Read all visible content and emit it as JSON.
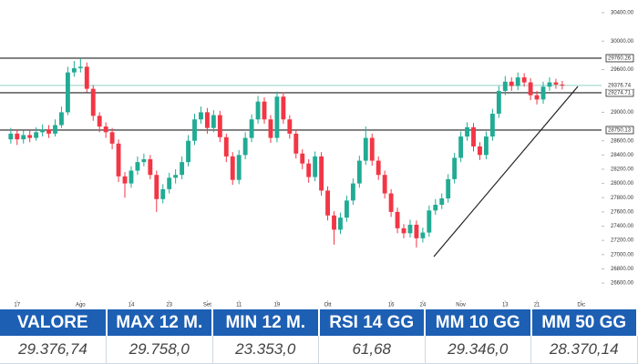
{
  "chart_data": {
    "type": "candlestick",
    "x": [
      0,
      1,
      2,
      3,
      4,
      5,
      6,
      7,
      8,
      9,
      10,
      11,
      12,
      13,
      14,
      15,
      16,
      17,
      18,
      19,
      20,
      21,
      22,
      23,
      24,
      25,
      26,
      27,
      28,
      29,
      30,
      31,
      32,
      33,
      34,
      35,
      36,
      37,
      38,
      39,
      40,
      41,
      42,
      43,
      44,
      45,
      46,
      47,
      48,
      49,
      50,
      51,
      52,
      53,
      54,
      55,
      56,
      57,
      58,
      59,
      60,
      61,
      62,
      63,
      64,
      65,
      66,
      67,
      68,
      69,
      70,
      71,
      72,
      73,
      74,
      75,
      76,
      77,
      78,
      79,
      80,
      81,
      82,
      83,
      84,
      85,
      86,
      87
    ],
    "open": [
      28620,
      28700,
      28620,
      28680,
      28640,
      28720,
      28760,
      28700,
      28820,
      29000,
      29560,
      29620,
      29640,
      29330,
      28950,
      28800,
      28720,
      28560,
      28100,
      28000,
      28180,
      28300,
      28340,
      28120,
      27780,
      27920,
      28080,
      28120,
      28300,
      28600,
      28900,
      29000,
      28780,
      28960,
      28650,
      28380,
      28050,
      28400,
      28640,
      28900,
      29150,
      28900,
      28640,
      29220,
      28900,
      28700,
      28420,
      28280,
      28090,
      28380,
      27900,
      27550,
      27350,
      27520,
      27760,
      28000,
      28320,
      28640,
      28320,
      28120,
      27860,
      27600,
      27370,
      27300,
      27420,
      27230,
      27310,
      27620,
      27700,
      27790,
      28060,
      28360,
      28660,
      28790,
      28520,
      28400,
      28660,
      28980,
      29300,
      29430,
      29370,
      29490,
      29420,
      29240,
      29180,
      29360,
      29420,
      29390
    ],
    "high": [
      28780,
      28760,
      28740,
      28750,
      28790,
      28830,
      28820,
      28900,
      29080,
      29640,
      29720,
      29760,
      29700,
      29380,
      29000,
      28860,
      28780,
      28620,
      28160,
      28240,
      28380,
      28420,
      28400,
      28180,
      27990,
      28150,
      28200,
      28380,
      28680,
      28980,
      29080,
      29060,
      29030,
      29020,
      28700,
      28440,
      28470,
      28720,
      28970,
      29230,
      29210,
      28960,
      29290,
      29280,
      28960,
      28760,
      28480,
      28340,
      28450,
      28440,
      27960,
      27610,
      27590,
      27830,
      28070,
      28390,
      28800,
      28700,
      28380,
      28180,
      27920,
      27660,
      27430,
      27490,
      27480,
      27380,
      27690,
      27780,
      27860,
      28130,
      28430,
      28730,
      28860,
      28850,
      28580,
      28730,
      29050,
      29370,
      29510,
      29490,
      29560,
      29550,
      29480,
      29300,
      29430,
      29490,
      29470,
      29440
    ],
    "low": [
      28560,
      28540,
      28560,
      28580,
      28600,
      28660,
      28640,
      28660,
      28780,
      28960,
      29500,
      29560,
      29280,
      28880,
      28720,
      28640,
      28480,
      28020,
      27800,
      27940,
      28120,
      28240,
      28060,
      27600,
      27720,
      27860,
      28000,
      28060,
      28240,
      28540,
      28840,
      28700,
      28720,
      28580,
      28300,
      27980,
      27990,
      28340,
      28580,
      28840,
      28840,
      28570,
      28580,
      28840,
      28630,
      28350,
      28200,
      28010,
      28030,
      27830,
      27480,
      27140,
      27290,
      27460,
      27700,
      27940,
      28260,
      28250,
      28050,
      27790,
      27530,
      27300,
      27230,
      27240,
      27100,
      27170,
      27250,
      27560,
      27640,
      27730,
      28000,
      28300,
      28600,
      28450,
      28330,
      28340,
      28600,
      28920,
      29240,
      29300,
      29310,
      29360,
      29170,
      29110,
      29120,
      29300,
      29330,
      29320
    ],
    "close": [
      28700,
      28620,
      28680,
      28640,
      28720,
      28760,
      28700,
      28820,
      29000,
      29560,
      29620,
      29640,
      29330,
      28950,
      28800,
      28720,
      28560,
      28100,
      28000,
      28180,
      28300,
      28340,
      28120,
      27780,
      27920,
      28080,
      28120,
      28300,
      28600,
      28900,
      29000,
      28780,
      28960,
      28650,
      28380,
      28050,
      28400,
      28640,
      28900,
      29150,
      28900,
      28640,
      29220,
      28900,
      28700,
      28420,
      28280,
      28090,
      28380,
      27900,
      27550,
      27350,
      27520,
      27760,
      28000,
      28320,
      28640,
      28320,
      28120,
      27860,
      27600,
      27370,
      27300,
      27420,
      27230,
      27310,
      27620,
      27700,
      27790,
      28060,
      28360,
      28660,
      28790,
      28520,
      28400,
      28660,
      28980,
      29300,
      29430,
      29370,
      29490,
      29420,
      29240,
      29180,
      29360,
      29420,
      29390,
      29376.74
    ],
    "up_color": "#22ab94",
    "down_color": "#f23645",
    "levels": [
      29760.26,
      29274.71,
      28750.13
    ],
    "level_color": "#222222",
    "last_price": 29376.74,
    "last_price_color": "#8fd3c8",
    "xlim": [
      -1.7,
      93.2
    ],
    "xticks": [
      {
        "value": 1,
        "label": "17"
      },
      {
        "value": 11,
        "label": "Ago"
      },
      {
        "value": 19,
        "label": "14"
      },
      {
        "value": 25,
        "label": "23"
      },
      {
        "value": 31,
        "label": "Set"
      },
      {
        "value": 36,
        "label": "11"
      },
      {
        "value": 42,
        "label": "19"
      },
      {
        "value": 50,
        "label": "Ott"
      },
      {
        "value": 60,
        "label": "16"
      },
      {
        "value": 65,
        "label": "24"
      },
      {
        "value": 71,
        "label": "Nov"
      },
      {
        "value": 78,
        "label": "13"
      },
      {
        "value": 83,
        "label": "21"
      },
      {
        "value": 90,
        "label": "Dic"
      }
    ],
    "ylim": [
      26358,
      30514
    ],
    "yticks": [
      {
        "value": 30400,
        "label": "30400.00"
      },
      {
        "value": 30000,
        "label": "30000.00"
      },
      {
        "value": 29600,
        "label": "29600.00"
      },
      {
        "value": 29000,
        "label": "29000.00"
      },
      {
        "value": 28600,
        "label": "28600.00"
      },
      {
        "value": 28400,
        "label": "28400.00"
      },
      {
        "value": 28200,
        "label": "28200.00"
      },
      {
        "value": 28000,
        "label": "28000.00"
      },
      {
        "value": 27800,
        "label": "27800.00"
      },
      {
        "value": 27600,
        "label": "27600.00"
      },
      {
        "value": 27400,
        "label": "27400.00"
      },
      {
        "value": 27200,
        "label": "27200.00"
      },
      {
        "value": 27000,
        "label": "27000.00"
      },
      {
        "value": 26800,
        "label": "26800.00"
      },
      {
        "value": 26600,
        "label": "26600.00"
      }
    ],
    "grid": false
  },
  "table": {
    "headers": [
      "VALORE",
      "MAX 12 M.",
      "MIN 12 M.",
      "RSI 14 GG",
      "MM 10 GG",
      "MM 50 GG"
    ],
    "rows": [
      [
        "29.376,74",
        "29.758,0",
        "23.353,0",
        "61,68",
        "29.346,0",
        "28.370,14"
      ]
    ]
  }
}
